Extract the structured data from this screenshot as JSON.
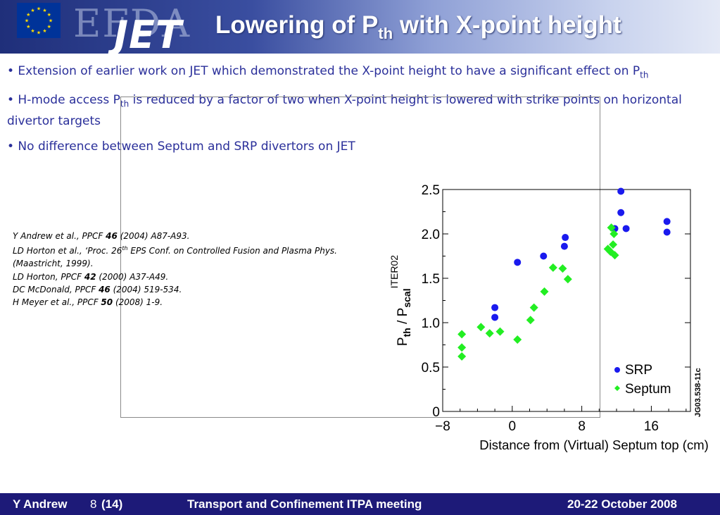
{
  "header": {
    "logo_efda": "EFDA",
    "logo_jet": "JET",
    "title_prefix": "Lowering of P",
    "title_sub": "th",
    "title_suffix": " with X-point height",
    "flag_color": "#003399",
    "star_color": "#ffdd00"
  },
  "bullets": [
    {
      "prefix": "• Extension of earlier work on JET which demonstrated the X-point height to have a significant effect on P",
      "sub": "th",
      "suffix": ""
    },
    {
      "prefix": "• H-mode access P",
      "sub": "th",
      "suffix": " is reduced by a factor of two when X-point height is lowered with strike points on horizontal divertor targets"
    },
    {
      "prefix": "• No difference between Septum and SRP divertors on JET",
      "sub": "",
      "suffix": ""
    }
  ],
  "references": [
    {
      "pre": "Y Andrew et al., PPCF ",
      "bold": "46",
      "post": " (2004) A87-A93."
    },
    {
      "pre": "LD Horton et al., ‘Proc. 26",
      "sup": "th",
      "post2": " EPS Conf. on Controlled Fusion and Plasma Phys."
    },
    {
      "pre": "(Maastricht, 1999)."
    },
    {
      "pre": "LD Horton, PPCF ",
      "bold": "42",
      "post": " (2000) A37-A49."
    },
    {
      "pre": "DC McDonald, PPCF ",
      "bold": "46",
      "post": " (2004) 519-534."
    },
    {
      "pre": "H Meyer et al., PPCF ",
      "bold": "50",
      "post": " (2008) 1-9."
    }
  ],
  "footer": {
    "author": "Y Andrew",
    "page": "8",
    "total": "(14)",
    "meeting": "Transport and Confinement ITPA meeting",
    "date": "20-22 October 2008",
    "bg_color": "#1d1a78"
  },
  "chart_data": {
    "type": "scatter",
    "xlabel": "Distance from (Virtual) Septum top (cm)",
    "ylabel_parts": {
      "p": "P",
      "th": "th",
      "slash": " / P",
      "scal": "scal",
      "iter": "ITER02"
    },
    "figure_id": "JG03.538-11c",
    "xlim": [
      -8,
      20.5
    ],
    "ylim": [
      0,
      2.5
    ],
    "xticks": [
      -8,
      0,
      8,
      16
    ],
    "xtick_labels": [
      "−8",
      "0",
      "8",
      "16"
    ],
    "yticks": [
      0,
      0.5,
      1.0,
      1.5,
      2.0,
      2.5
    ],
    "ytick_labels": [
      "0",
      "0.5",
      "1.0",
      "1.5",
      "2.0",
      "2.5"
    ],
    "legend_position": "bottom-right",
    "series": [
      {
        "name": "SRP",
        "marker": "circle",
        "color": "#1a1aee",
        "points": [
          [
            -2,
            1.17
          ],
          [
            -2,
            1.06
          ],
          [
            0.6,
            1.68
          ],
          [
            3.6,
            1.75
          ],
          [
            6,
            1.86
          ],
          [
            6.1,
            1.96
          ],
          [
            11.8,
            2.06
          ],
          [
            12.5,
            2.24
          ],
          [
            12.5,
            2.48
          ],
          [
            13.1,
            2.06
          ],
          [
            17.8,
            2.14
          ],
          [
            17.8,
            2.02
          ]
        ]
      },
      {
        "name": "Septum",
        "marker": "diamond",
        "color": "#22ee22",
        "points": [
          [
            -5.8,
            0.87
          ],
          [
            -5.8,
            0.72
          ],
          [
            -5.8,
            0.62
          ],
          [
            -3.6,
            0.95
          ],
          [
            -2.6,
            0.88
          ],
          [
            -1.4,
            0.9
          ],
          [
            0.6,
            0.81
          ],
          [
            2.1,
            1.03
          ],
          [
            2.5,
            1.17
          ],
          [
            3.7,
            1.35
          ],
          [
            4.7,
            1.62
          ],
          [
            5.8,
            1.61
          ],
          [
            6.4,
            1.49
          ],
          [
            11,
            1.83
          ],
          [
            11.3,
            1.8
          ],
          [
            11.4,
            2.07
          ],
          [
            11.6,
            1.88
          ],
          [
            11.7,
            2.0
          ],
          [
            11.8,
            1.76
          ]
        ]
      }
    ]
  }
}
